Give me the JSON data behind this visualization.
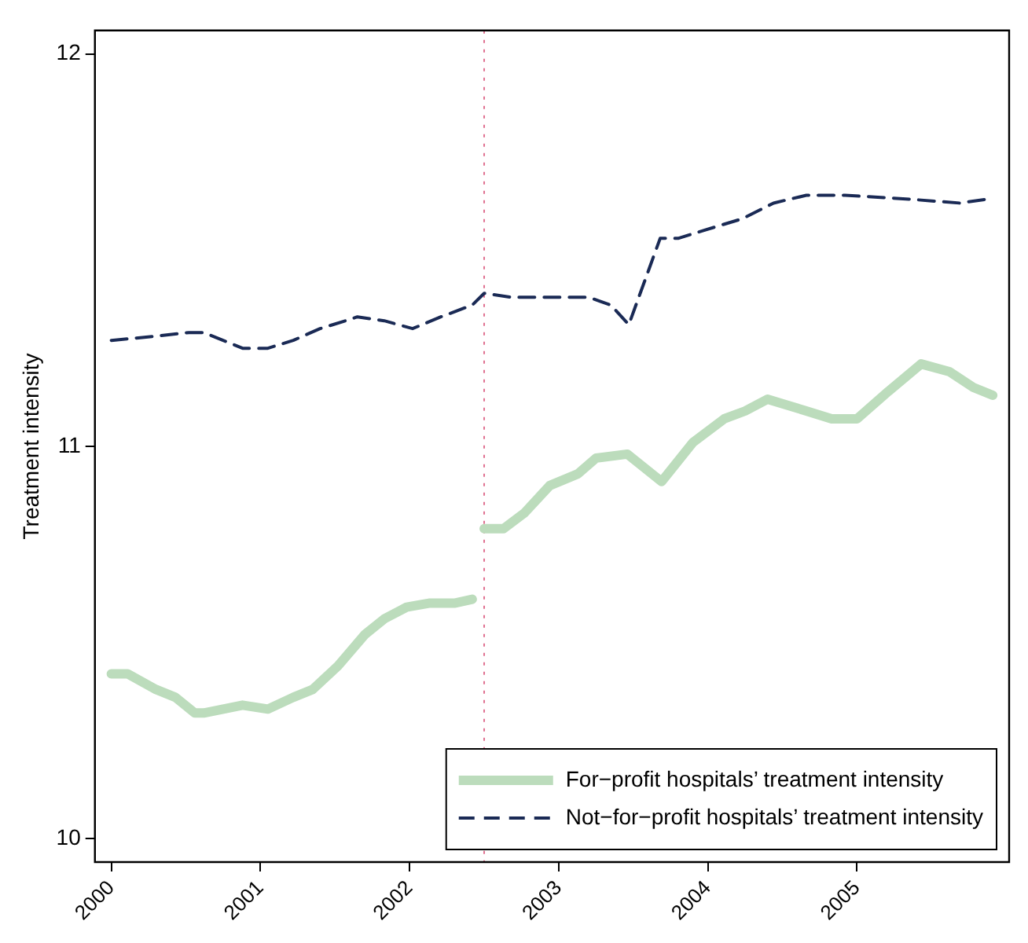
{
  "chart_data": {
    "type": "line",
    "ylabel": "Treatment intensity",
    "xlim": [
      1999.89,
      2006.02
    ],
    "xticks": [
      2000,
      2001,
      2002,
      2003,
      2004,
      2005
    ],
    "ylim": [
      9.94,
      12.06
    ],
    "yticks": [
      10,
      11,
      12
    ],
    "grid": false,
    "legend": "bottom right",
    "marker": "none",
    "ref_lines": [
      {
        "axis": "x",
        "value": 2002.5,
        "color": "#e07090",
        "line_style": "dotted"
      }
    ],
    "series": [
      {
        "name": "For−profit hospitals’ treatment intensity",
        "color": "#bcdcbc",
        "line_style": "solid",
        "x": [
          2000.0,
          2000.11,
          2000.3,
          2000.43,
          2000.56,
          2000.62,
          2000.75,
          2000.88,
          2001.05,
          2001.22,
          2001.35,
          2001.52,
          2001.7,
          2001.83,
          2001.98,
          2002.13,
          2002.3,
          2002.42,
          2002.46,
          2002.5,
          2002.63,
          2002.77,
          2002.94,
          2003.13,
          2003.25,
          2003.46,
          2003.69,
          2003.9,
          2004.11,
          2004.25,
          2004.4,
          2004.66,
          2004.83,
          2005.0,
          2005.21,
          2005.43,
          2005.62,
          2005.78,
          2005.91
        ],
        "values": [
          10.42,
          10.42,
          10.38,
          10.36,
          10.32,
          10.32,
          10.33,
          10.34,
          10.33,
          10.36,
          10.38,
          10.44,
          10.52,
          10.56,
          10.59,
          10.6,
          10.6,
          10.61,
          null,
          10.79,
          10.79,
          10.83,
          10.9,
          10.93,
          10.97,
          10.98,
          10.91,
          11.01,
          11.07,
          11.09,
          11.12,
          11.09,
          11.07,
          11.07,
          11.14,
          11.21,
          11.19,
          11.15,
          11.13
        ]
      },
      {
        "name": "Not−for−profit hospitals’ treatment intensity",
        "color": "#1a2a55",
        "line_style": "dashed",
        "x": [
          2000.0,
          2000.28,
          2000.52,
          2000.62,
          2000.88,
          2001.05,
          2001.22,
          2001.4,
          2001.57,
          2001.65,
          2001.83,
          2002.02,
          2002.21,
          2002.42,
          2002.5,
          2002.68,
          2002.86,
          2003.2,
          2003.35,
          2003.47,
          2003.68,
          2003.8,
          2003.97,
          2004.23,
          2004.44,
          2004.66,
          2004.92,
          2005.35,
          2005.69,
          2005.87
        ],
        "values": [
          11.27,
          11.28,
          11.29,
          11.29,
          11.25,
          11.25,
          11.27,
          11.3,
          11.32,
          11.33,
          11.32,
          11.3,
          11.33,
          11.36,
          11.39,
          11.38,
          11.38,
          11.38,
          11.36,
          11.31,
          11.53,
          11.53,
          11.55,
          11.58,
          11.62,
          11.64,
          11.64,
          11.63,
          11.62,
          11.63
        ]
      }
    ]
  }
}
